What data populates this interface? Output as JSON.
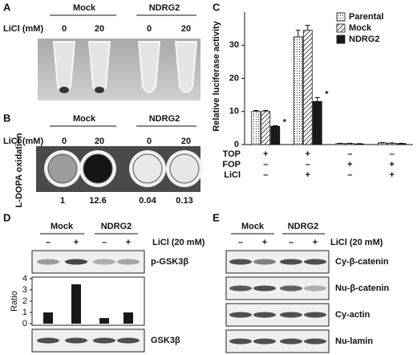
{
  "panel_a": {
    "label": "A",
    "groups": [
      "Mock",
      "NDRG2"
    ],
    "row_label": "LiCl (mM)",
    "doses": [
      0,
      20,
      0,
      20
    ]
  },
  "panel_b": {
    "label": "B",
    "groups": [
      "Mock",
      "NDRG2"
    ],
    "row_label": "LiCl (mM)",
    "doses": [
      0,
      20,
      0,
      20
    ],
    "side_label": "L-DOPA oxidation",
    "values": [
      1,
      12.6,
      0.04,
      0.13
    ]
  },
  "chart_data": [
    {
      "type": "bar",
      "label": "C",
      "y_label": "Relative luciferase activity",
      "ylim": [
        0,
        40
      ],
      "yticks": [
        0,
        10,
        20,
        30
      ],
      "grid": false,
      "legend": "top-right",
      "series": [
        {
          "name": "Parental",
          "color": "#ffffff",
          "pattern": "dots",
          "values": [
            10,
            32.5,
            0.3,
            0.5
          ],
          "errors": [
            0.3,
            2,
            0.1,
            0.1
          ]
        },
        {
          "name": "Mock",
          "color": "#ffffff",
          "pattern": "hatch",
          "values": [
            10,
            34.5,
            0.3,
            0.4
          ],
          "errors": [
            0.3,
            1.5,
            0.1,
            0.1
          ]
        },
        {
          "name": "NDRG2",
          "color": "#1a1a1a",
          "pattern": "solid",
          "values": [
            5.5,
            13,
            0.2,
            0.3
          ],
          "errors": [
            0.2,
            1.2,
            0.1,
            0.1
          ],
          "significance": [
            "*",
            "*",
            null,
            null
          ]
        }
      ],
      "conditions": [
        {
          "name": "TOP",
          "marks": [
            "+",
            "+",
            "–",
            "–"
          ]
        },
        {
          "name": "FOP",
          "marks": [
            "–",
            "–",
            "+",
            "+"
          ]
        },
        {
          "name": "LiCl",
          "marks": [
            "–",
            "+",
            "–",
            "+"
          ]
        }
      ]
    },
    {
      "type": "bar",
      "y_label": "Ratio",
      "values": [
        1,
        3.5,
        0.5,
        1
      ],
      "color": "#1a1a1a",
      "ylim": [
        0,
        4
      ],
      "yticks": [
        0,
        1,
        2,
        3,
        4
      ]
    }
  ],
  "panel_d": {
    "label": "D",
    "groups": [
      "Mock",
      "NDRG2"
    ],
    "treatment": [
      "–",
      "+",
      "–",
      "+"
    ],
    "treatment_label": "LiCl (20 mM)",
    "blots": [
      "p-GSK3β",
      "GSK3β"
    ]
  },
  "panel_e": {
    "label": "E",
    "groups": [
      "Mock",
      "NDRG2"
    ],
    "treatment": [
      "–",
      "+",
      "–",
      "+"
    ],
    "treatment_label": "LiCl (20 mM)",
    "blots": [
      "Cy-β-catenin",
      "Nu-β-catenin",
      "Cy-actin",
      "Nu-lamin"
    ]
  }
}
